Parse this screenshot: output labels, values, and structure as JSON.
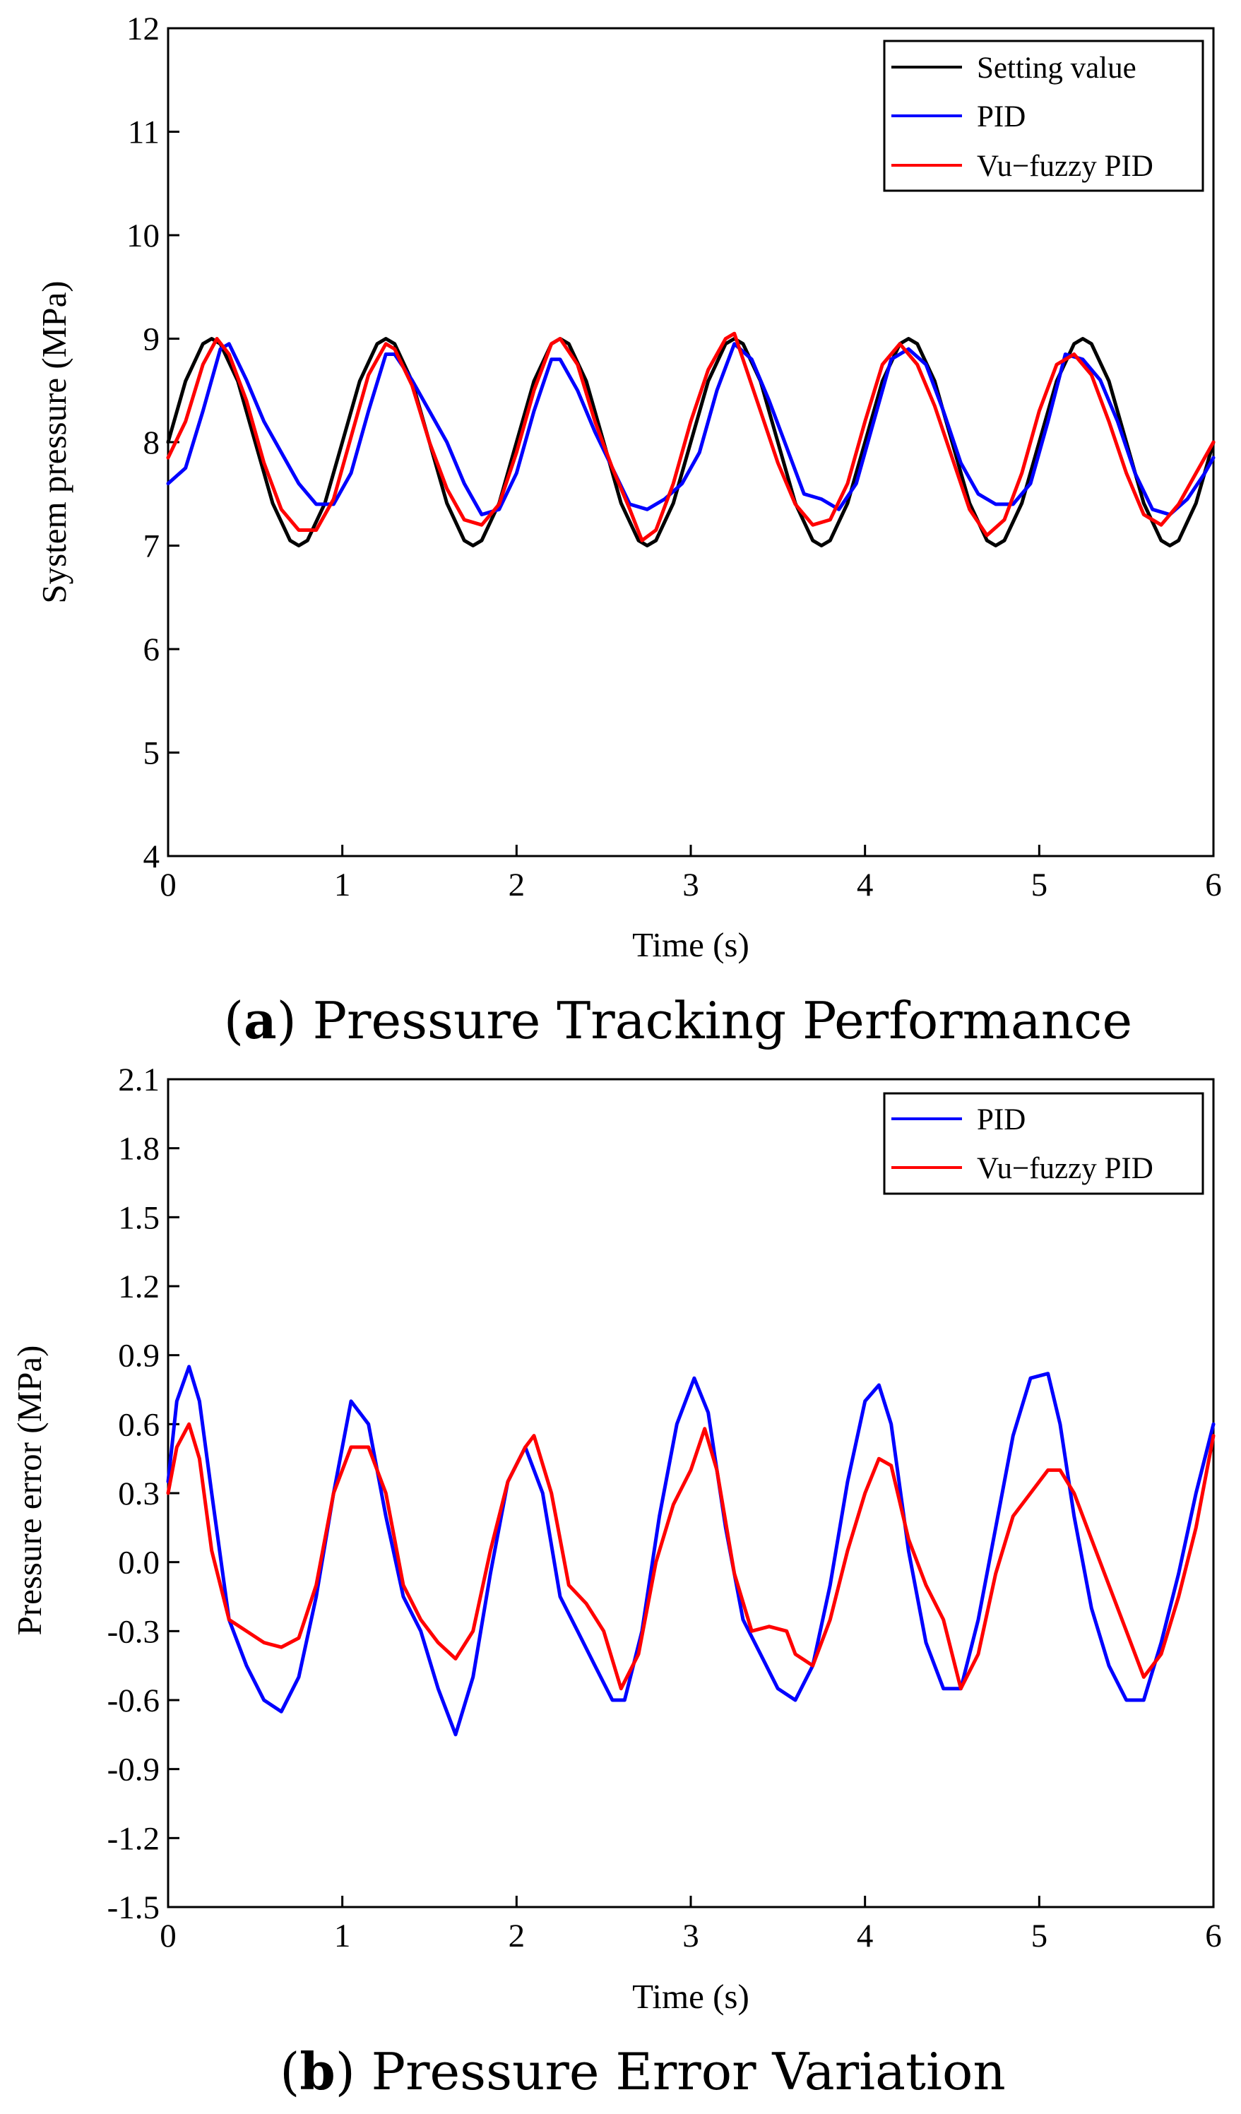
{
  "chart_data": [
    {
      "type": "line",
      "caption_letter": "a",
      "caption_text": "Pressure Tracking Performance",
      "xlabel": "Time (s)",
      "ylabel": "System pressure (MPa)",
      "xlim": [
        0,
        6
      ],
      "ylim": [
        4,
        12
      ],
      "xticks": [
        0,
        1,
        2,
        3,
        4,
        5,
        6
      ],
      "yticks": [
        4,
        5,
        6,
        7,
        8,
        9,
        10,
        11,
        12
      ],
      "ytick_labels": [
        "4",
        "5",
        "6",
        "7",
        "8",
        "9",
        "10",
        "11",
        "12"
      ],
      "grid": false,
      "legend_position": "top-right",
      "series": [
        {
          "name": "Setting value",
          "color": "#000000",
          "x": [
            0,
            0.1,
            0.2,
            0.25,
            0.3,
            0.4,
            0.5,
            0.6,
            0.7,
            0.75,
            0.8,
            0.9,
            1.0,
            1.1,
            1.2,
            1.25,
            1.3,
            1.4,
            1.5,
            1.6,
            1.7,
            1.75,
            1.8,
            1.9,
            2.0,
            2.1,
            2.2,
            2.25,
            2.3,
            2.4,
            2.5,
            2.6,
            2.7,
            2.75,
            2.8,
            2.9,
            3.0,
            3.1,
            3.2,
            3.25,
            3.3,
            3.4,
            3.5,
            3.6,
            3.7,
            3.75,
            3.8,
            3.9,
            4.0,
            4.1,
            4.2,
            4.25,
            4.3,
            4.4,
            4.5,
            4.6,
            4.7,
            4.75,
            4.8,
            4.9,
            5.0,
            5.1,
            5.2,
            5.25,
            5.3,
            5.4,
            5.5,
            5.6,
            5.7,
            5.75,
            5.8,
            5.9,
            6.0
          ],
          "y": [
            8.0,
            8.59,
            8.95,
            9.0,
            8.95,
            8.59,
            8.0,
            7.41,
            7.05,
            7.0,
            7.05,
            7.41,
            8.0,
            8.59,
            8.95,
            9.0,
            8.95,
            8.59,
            8.0,
            7.41,
            7.05,
            7.0,
            7.05,
            7.41,
            8.0,
            8.59,
            8.95,
            9.0,
            8.95,
            8.59,
            8.0,
            7.41,
            7.05,
            7.0,
            7.05,
            7.41,
            8.0,
            8.59,
            8.95,
            9.0,
            8.95,
            8.59,
            8.0,
            7.41,
            7.05,
            7.0,
            7.05,
            7.41,
            8.0,
            8.59,
            8.95,
            9.0,
            8.95,
            8.59,
            8.0,
            7.41,
            7.05,
            7.0,
            7.05,
            7.41,
            8.0,
            8.59,
            8.95,
            9.0,
            8.95,
            8.59,
            8.0,
            7.41,
            7.05,
            7.0,
            7.05,
            7.41,
            8.0
          ]
        },
        {
          "name": "PID",
          "color": "#0000ff",
          "x": [
            0,
            0.1,
            0.2,
            0.3,
            0.35,
            0.45,
            0.55,
            0.65,
            0.75,
            0.85,
            0.95,
            1.05,
            1.15,
            1.25,
            1.3,
            1.4,
            1.5,
            1.6,
            1.7,
            1.8,
            1.9,
            2.0,
            2.1,
            2.2,
            2.25,
            2.35,
            2.45,
            2.55,
            2.65,
            2.75,
            2.85,
            2.95,
            3.05,
            3.15,
            3.25,
            3.35,
            3.45,
            3.55,
            3.65,
            3.75,
            3.85,
            3.95,
            4.05,
            4.15,
            4.25,
            4.35,
            4.45,
            4.55,
            4.65,
            4.75,
            4.85,
            4.95,
            5.05,
            5.15,
            5.25,
            5.35,
            5.45,
            5.55,
            5.65,
            5.75,
            5.85,
            5.95,
            6.0
          ],
          "y": [
            7.6,
            7.75,
            8.3,
            8.9,
            8.95,
            8.6,
            8.2,
            7.9,
            7.6,
            7.4,
            7.4,
            7.7,
            8.3,
            8.85,
            8.85,
            8.6,
            8.3,
            8.0,
            7.6,
            7.3,
            7.35,
            7.7,
            8.3,
            8.8,
            8.8,
            8.5,
            8.1,
            7.75,
            7.4,
            7.35,
            7.45,
            7.6,
            7.9,
            8.5,
            8.95,
            8.8,
            8.4,
            7.95,
            7.5,
            7.45,
            7.35,
            7.6,
            8.2,
            8.8,
            8.9,
            8.75,
            8.3,
            7.8,
            7.5,
            7.4,
            7.4,
            7.6,
            8.2,
            8.85,
            8.8,
            8.6,
            8.2,
            7.7,
            7.35,
            7.3,
            7.45,
            7.7,
            7.85
          ]
        },
        {
          "name": "Vu−fuzzy PID",
          "color": "#ff0000",
          "x": [
            0,
            0.1,
            0.2,
            0.28,
            0.35,
            0.45,
            0.55,
            0.65,
            0.75,
            0.85,
            0.95,
            1.05,
            1.15,
            1.25,
            1.3,
            1.4,
            1.5,
            1.6,
            1.7,
            1.8,
            1.9,
            2.0,
            2.1,
            2.2,
            2.25,
            2.35,
            2.45,
            2.55,
            2.65,
            2.72,
            2.8,
            2.9,
            3.0,
            3.1,
            3.2,
            3.25,
            3.3,
            3.4,
            3.5,
            3.6,
            3.7,
            3.8,
            3.9,
            4.0,
            4.1,
            4.2,
            4.3,
            4.4,
            4.5,
            4.6,
            4.7,
            4.8,
            4.9,
            5.0,
            5.1,
            5.2,
            5.3,
            5.4,
            5.5,
            5.6,
            5.7,
            5.8,
            5.9,
            6.0
          ],
          "y": [
            7.85,
            8.2,
            8.75,
            9.0,
            8.85,
            8.4,
            7.8,
            7.35,
            7.15,
            7.15,
            7.45,
            8.05,
            8.65,
            8.95,
            8.9,
            8.55,
            8.0,
            7.55,
            7.25,
            7.2,
            7.4,
            7.9,
            8.5,
            8.95,
            9.0,
            8.75,
            8.2,
            7.75,
            7.35,
            7.05,
            7.15,
            7.6,
            8.2,
            8.7,
            9.0,
            9.05,
            8.8,
            8.3,
            7.8,
            7.4,
            7.2,
            7.25,
            7.6,
            8.2,
            8.75,
            8.95,
            8.75,
            8.35,
            7.85,
            7.35,
            7.1,
            7.25,
            7.7,
            8.3,
            8.75,
            8.85,
            8.65,
            8.2,
            7.7,
            7.3,
            7.2,
            7.4,
            7.7,
            8.0
          ]
        }
      ]
    },
    {
      "type": "line",
      "caption_letter": "b",
      "caption_text": "Pressure Error Variation",
      "xlabel": "Time (s)",
      "ylabel": "Pressure error (MPa)",
      "xlim": [
        0,
        6
      ],
      "ylim": [
        -1.5,
        2.1
      ],
      "xticks": [
        0,
        1,
        2,
        3,
        4,
        5,
        6
      ],
      "yticks": [
        -1.5,
        -1.2,
        -0.9,
        -0.6,
        -0.3,
        0.0,
        0.3,
        0.6,
        0.9,
        1.2,
        1.5,
        1.8,
        2.1
      ],
      "ytick_labels": [
        "-1.5",
        "-1.2",
        "-0.9",
        "-0.6",
        "-0.3",
        "0.0",
        "0.3",
        "0.6",
        "0.9",
        "1.2",
        "1.5",
        "1.8",
        "2.1"
      ],
      "grid": false,
      "legend_position": "top-right",
      "series": [
        {
          "name": "PID",
          "color": "#0000ff",
          "x": [
            0,
            0.05,
            0.12,
            0.18,
            0.25,
            0.35,
            0.45,
            0.55,
            0.65,
            0.75,
            0.85,
            0.95,
            1.05,
            1.15,
            1.25,
            1.35,
            1.45,
            1.55,
            1.65,
            1.75,
            1.85,
            1.95,
            2.05,
            2.15,
            2.25,
            2.35,
            2.45,
            2.55,
            2.62,
            2.72,
            2.82,
            2.92,
            3.02,
            3.1,
            3.2,
            3.3,
            3.4,
            3.5,
            3.6,
            3.7,
            3.8,
            3.9,
            4.0,
            4.08,
            4.15,
            4.25,
            4.35,
            4.45,
            4.55,
            4.65,
            4.75,
            4.85,
            4.95,
            5.05,
            5.12,
            5.2,
            5.3,
            5.4,
            5.5,
            5.6,
            5.7,
            5.8,
            5.9,
            6.0
          ],
          "y": [
            0.35,
            0.7,
            0.85,
            0.7,
            0.3,
            -0.25,
            -0.45,
            -0.6,
            -0.65,
            -0.5,
            -0.15,
            0.3,
            0.7,
            0.6,
            0.2,
            -0.15,
            -0.3,
            -0.55,
            -0.75,
            -0.5,
            -0.05,
            0.35,
            0.5,
            0.3,
            -0.15,
            -0.3,
            -0.45,
            -0.6,
            -0.6,
            -0.3,
            0.2,
            0.6,
            0.8,
            0.65,
            0.15,
            -0.25,
            -0.4,
            -0.55,
            -0.6,
            -0.45,
            -0.1,
            0.35,
            0.7,
            0.77,
            0.6,
            0.05,
            -0.35,
            -0.55,
            -0.55,
            -0.25,
            0.15,
            0.55,
            0.8,
            0.82,
            0.6,
            0.2,
            -0.2,
            -0.45,
            -0.6,
            -0.6,
            -0.35,
            -0.05,
            0.3,
            0.6
          ]
        },
        {
          "name": "Vu−fuzzy PID",
          "color": "#ff0000",
          "x": [
            0,
            0.05,
            0.12,
            0.18,
            0.25,
            0.35,
            0.45,
            0.55,
            0.65,
            0.75,
            0.85,
            0.95,
            1.05,
            1.15,
            1.25,
            1.35,
            1.45,
            1.55,
            1.65,
            1.75,
            1.85,
            1.95,
            2.05,
            2.1,
            2.2,
            2.3,
            2.4,
            2.5,
            2.6,
            2.7,
            2.8,
            2.9,
            3.0,
            3.08,
            3.15,
            3.25,
            3.35,
            3.45,
            3.55,
            3.6,
            3.7,
            3.8,
            3.9,
            4.0,
            4.08,
            4.15,
            4.25,
            4.35,
            4.45,
            4.55,
            4.65,
            4.75,
            4.85,
            4.95,
            5.05,
            5.12,
            5.2,
            5.3,
            5.4,
            5.5,
            5.6,
            5.7,
            5.8,
            5.9,
            6.0
          ],
          "y": [
            0.3,
            0.5,
            0.6,
            0.45,
            0.05,
            -0.25,
            -0.3,
            -0.35,
            -0.37,
            -0.33,
            -0.1,
            0.3,
            0.5,
            0.5,
            0.3,
            -0.1,
            -0.25,
            -0.35,
            -0.42,
            -0.3,
            0.05,
            0.35,
            0.5,
            0.55,
            0.3,
            -0.1,
            -0.18,
            -0.3,
            -0.55,
            -0.4,
            0.0,
            0.25,
            0.4,
            0.58,
            0.4,
            -0.05,
            -0.3,
            -0.28,
            -0.3,
            -0.4,
            -0.45,
            -0.25,
            0.05,
            0.3,
            0.45,
            0.42,
            0.1,
            -0.1,
            -0.25,
            -0.55,
            -0.4,
            -0.05,
            0.2,
            0.3,
            0.4,
            0.4,
            0.3,
            0.1,
            -0.1,
            -0.3,
            -0.5,
            -0.4,
            -0.15,
            0.15,
            0.55
          ]
        }
      ]
    }
  ]
}
